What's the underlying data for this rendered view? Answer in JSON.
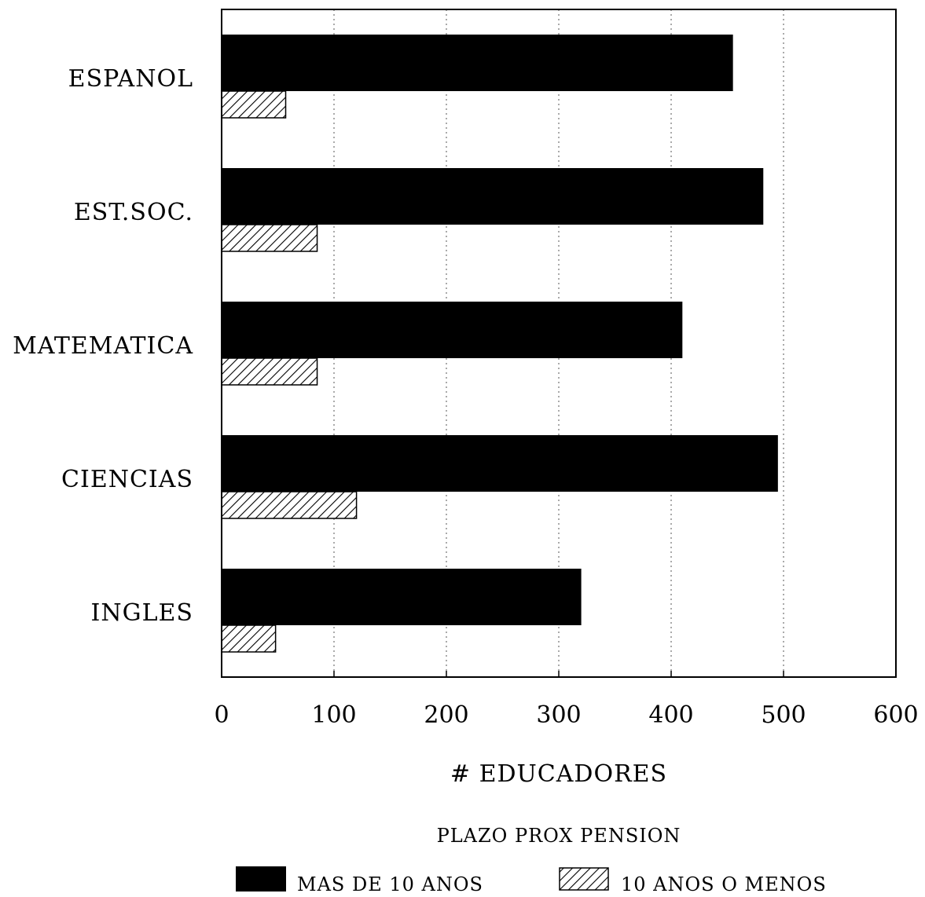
{
  "chart_data": {
    "type": "bar",
    "orientation": "horizontal",
    "categories": [
      "ESPANOL",
      "EST.SOC.",
      "MATEMATICA",
      "CIENCIAS",
      "INGLES"
    ],
    "series": [
      {
        "name": "MAS DE 10 ANOS",
        "values": [
          455,
          482,
          410,
          495,
          320
        ],
        "fill": "solid",
        "color": "#000000"
      },
      {
        "name": "10 ANOS O MENOS",
        "values": [
          57,
          85,
          85,
          120,
          48
        ],
        "fill": "hatched",
        "color": "#000000"
      }
    ],
    "x_ticks": [
      "0",
      "100",
      "200",
      "300",
      "400",
      "500",
      "600"
    ],
    "xlim": [
      0,
      600
    ],
    "xlabel": "# EDUCADORES",
    "ylabel": "",
    "title": "",
    "legend": {
      "title": "PLAZO PROX PENSION",
      "placement": "bottom"
    },
    "grid": "vertical dotted"
  }
}
